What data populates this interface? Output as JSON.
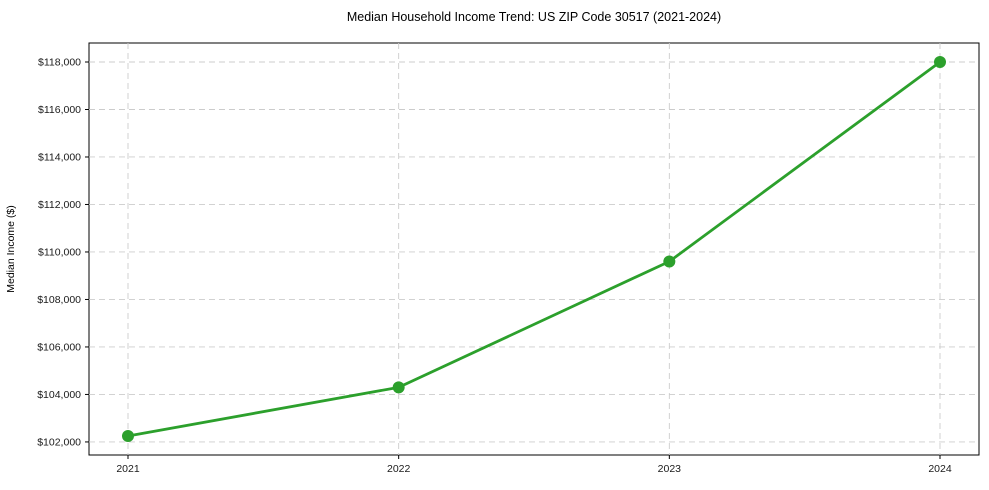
{
  "chart_data": {
    "type": "line",
    "title": "Median Household Income Trend: US ZIP Code 30517 (2021-2024)",
    "xlabel": "",
    "ylabel": "Median Income ($)",
    "x": [
      2021,
      2022,
      2023,
      2024
    ],
    "xtick_labels": [
      "2021",
      "2022",
      "2023",
      "2024"
    ],
    "series": [
      {
        "name": "Median Household Income",
        "values": [
          102250,
          104300,
          109600,
          118000
        ]
      }
    ],
    "ytick_values": [
      102000,
      104000,
      106000,
      108000,
      110000,
      112000,
      114000,
      116000,
      118000
    ],
    "ytick_labels": [
      "$102,000",
      "$104,000",
      "$106,000",
      "$108,000",
      "$110,000",
      "$112,000",
      "$114,000",
      "$116,000",
      "$118,000"
    ],
    "ylim": [
      101450,
      118800
    ],
    "grid": true,
    "grid_style": "dashed",
    "legend": false,
    "colors": {
      "line": "#2ca02c",
      "marker": "#2ca02c",
      "grid": "#cccccc",
      "axis": "#000000",
      "text": "#1a1a1a",
      "background": "#ffffff"
    }
  }
}
